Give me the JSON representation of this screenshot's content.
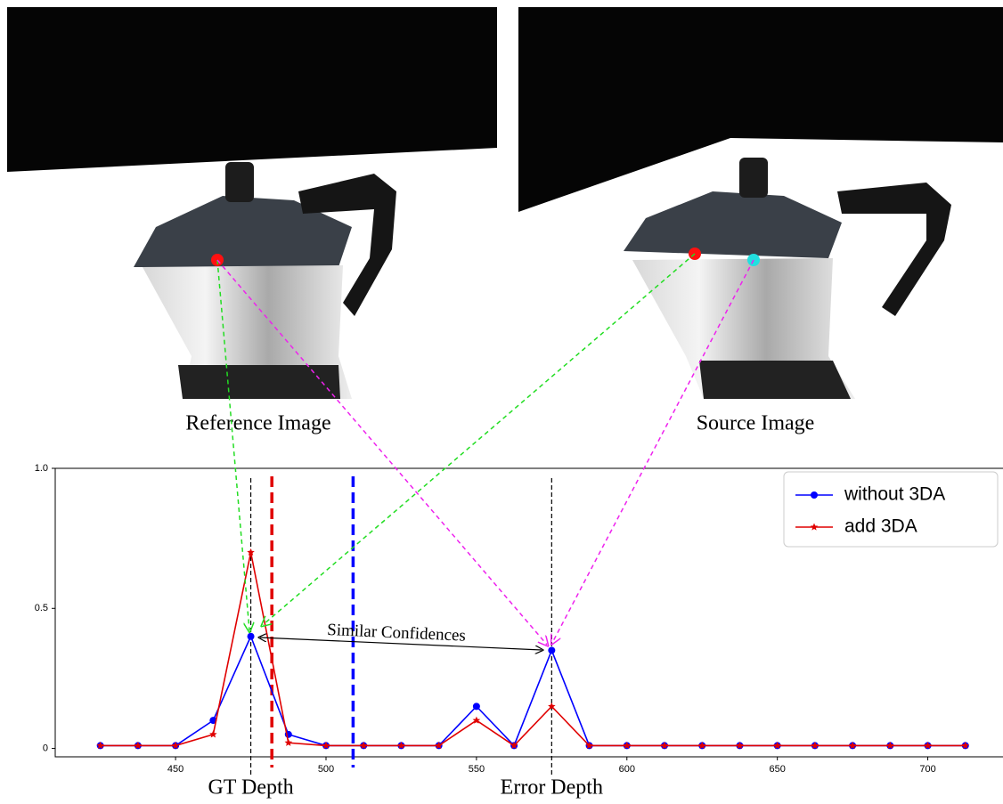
{
  "images": {
    "left_caption": "Reference Image",
    "right_caption": "Source Image"
  },
  "chart_data": {
    "type": "line",
    "xlim": [
      410,
      725
    ],
    "ylim": [
      -0.03,
      1.0
    ],
    "xticks": [
      450,
      500,
      550,
      600,
      650,
      700
    ],
    "yticks": [
      0,
      0.5,
      {
        "value": 1,
        "label": "1.0"
      }
    ],
    "x": [
      425,
      437.5,
      450,
      462.5,
      475,
      487.5,
      500,
      512.5,
      525,
      537.5,
      550,
      562.5,
      575,
      587.5,
      600,
      612.5,
      625,
      637.5,
      650,
      662.5,
      675,
      687.5,
      700,
      712.5
    ],
    "series": [
      {
        "name": "without 3DA",
        "color": "#0000ff",
        "marker": "circle",
        "values": [
          0.01,
          0.01,
          0.01,
          0.1,
          0.4,
          0.05,
          0.01,
          0.01,
          0.01,
          0.01,
          0.15,
          0.01,
          0.35,
          0.01,
          0.01,
          0.01,
          0.01,
          0.01,
          0.01,
          0.01,
          0.01,
          0.01,
          0.01,
          0.01
        ]
      },
      {
        "name": "add 3DA",
        "color": "#e00000",
        "marker": "star",
        "values": [
          0.01,
          0.01,
          0.01,
          0.05,
          0.7,
          0.02,
          0.01,
          0.01,
          0.01,
          0.01,
          0.1,
          0.01,
          0.15,
          0.01,
          0.01,
          0.01,
          0.01,
          0.01,
          0.01,
          0.01,
          0.01,
          0.01,
          0.01,
          0.01
        ]
      }
    ],
    "reference_lines": [
      {
        "x": 475,
        "color": "#000000",
        "style": "thin"
      },
      {
        "x": 575,
        "color": "#000000",
        "style": "thin"
      },
      {
        "x": 482,
        "color": "#e00000",
        "style": "thick"
      },
      {
        "x": 509,
        "color": "#0000ff",
        "style": "thick"
      }
    ],
    "annotations": [
      {
        "text": "GT Depth",
        "x": 475
      },
      {
        "text": "Error Depth",
        "x": 575
      }
    ],
    "note": "Similar Confidences",
    "legend": "upper right"
  }
}
